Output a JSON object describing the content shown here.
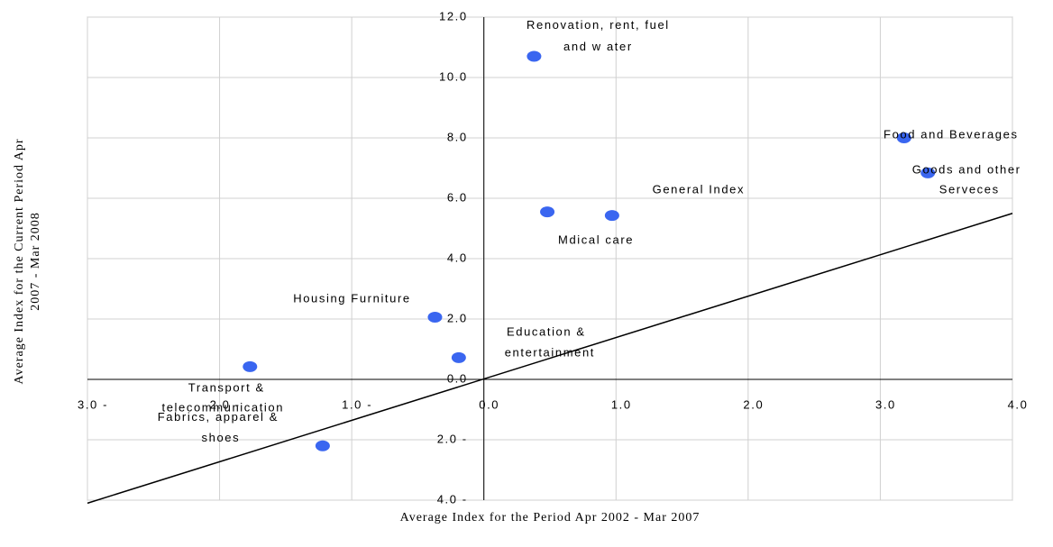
{
  "chart_data": {
    "type": "scatter",
    "x_label": "Average Index for the Period Apr 2002 - Mar 2007",
    "y_label": [
      "Average Index for the Current Period Apr",
      "2007 - Mar 2008"
    ],
    "xlim": [
      -3,
      4
    ],
    "ylim": [
      -4,
      12
    ],
    "xticks": [
      {
        "value": -3,
        "label": "3.0 -"
      },
      {
        "value": -2,
        "label": "2.0 -"
      },
      {
        "value": -1,
        "label": "1.0 -"
      },
      {
        "value": 0,
        "label": "0.0"
      },
      {
        "value": 1,
        "label": "1.0"
      },
      {
        "value": 2,
        "label": "2.0"
      },
      {
        "value": 3,
        "label": "3.0"
      },
      {
        "value": 4,
        "label": "4.0"
      }
    ],
    "yticks": [
      {
        "value": 12,
        "label": "12.0"
      },
      {
        "value": 10,
        "label": "10.0"
      },
      {
        "value": 8,
        "label": "8.0"
      },
      {
        "value": 6,
        "label": "6.0"
      },
      {
        "value": 4,
        "label": "4.0"
      },
      {
        "value": 2,
        "label": "2.0"
      },
      {
        "value": 0,
        "label": "0.0"
      },
      {
        "value": -2,
        "label": "2.0 -"
      },
      {
        "value": -4,
        "label": "4.0 -"
      }
    ],
    "grid": true,
    "color": "#3a66f0",
    "points": {
      "labels": [
        [
          "Renovation, rent, fuel",
          "and w ater"
        ],
        [
          "Food and Beverages"
        ],
        [
          "Goods and other",
          "Serveces"
        ],
        [
          "General Index"
        ],
        [
          "Mdical care"
        ],
        [
          "Housing Furniture"
        ],
        [
          "Education &",
          "entertainment"
        ],
        [
          "Transport &",
          "telecommunication"
        ],
        [
          "Fabrics, apparel &",
          "shoes"
        ]
      ],
      "x": [
        0.38,
        3.18,
        3.36,
        0.97,
        0.48,
        -0.37,
        -0.19,
        -1.77,
        -1.22
      ],
      "y": [
        10.7,
        8.0,
        6.84,
        5.43,
        5.55,
        2.06,
        0.72,
        0.42,
        -2.2
      ]
    },
    "trend_line": {
      "x": [
        -3,
        4
      ],
      "y": [
        -4.1,
        5.5
      ]
    }
  }
}
